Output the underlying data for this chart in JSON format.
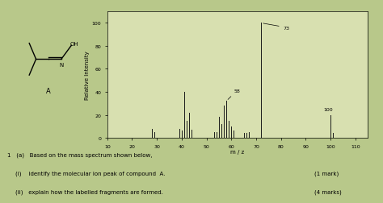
{
  "xlabel": "m / z",
  "ylabel": "Relative Intensity",
  "xlim": [
    10,
    115
  ],
  "ylim": [
    0,
    110
  ],
  "xticks": [
    10,
    20,
    30,
    40,
    50,
    60,
    70,
    80,
    90,
    100,
    110
  ],
  "yticks": [
    0,
    20,
    40,
    60,
    80,
    100
  ],
  "bg_color": "#b8c88a",
  "plot_bg_color": "#d8e0b0",
  "bar_color": "#1a1a1a",
  "peaks": [
    {
      "mz": 28,
      "intensity": 8
    },
    {
      "mz": 29,
      "intensity": 5
    },
    {
      "mz": 39,
      "intensity": 8
    },
    {
      "mz": 40,
      "intensity": 6
    },
    {
      "mz": 41,
      "intensity": 40
    },
    {
      "mz": 42,
      "intensity": 15
    },
    {
      "mz": 43,
      "intensity": 22
    },
    {
      "mz": 44,
      "intensity": 7
    },
    {
      "mz": 53,
      "intensity": 5
    },
    {
      "mz": 54,
      "intensity": 5
    },
    {
      "mz": 55,
      "intensity": 18
    },
    {
      "mz": 56,
      "intensity": 12
    },
    {
      "mz": 57,
      "intensity": 28
    },
    {
      "mz": 58,
      "intensity": 32
    },
    {
      "mz": 59,
      "intensity": 15
    },
    {
      "mz": 60,
      "intensity": 10
    },
    {
      "mz": 61,
      "intensity": 6
    },
    {
      "mz": 65,
      "intensity": 4
    },
    {
      "mz": 66,
      "intensity": 4
    },
    {
      "mz": 67,
      "intensity": 5
    },
    {
      "mz": 72,
      "intensity": 100
    },
    {
      "mz": 100,
      "intensity": 20
    },
    {
      "mz": 101,
      "intensity": 4
    }
  ],
  "label_73_mz": 72,
  "label_73_intensity": 100,
  "label_58_mz": 58,
  "label_58_intensity": 32,
  "label_100_mz": 100,
  "label_100_intensity": 20,
  "title_question": "1   (a)   Based on the mass spectrum shown below,",
  "question_i": "(i)    identify the molecular ion peak of compound  A.",
  "question_ii": "(ii)   explain how the labelled fragments are formed.",
  "mark_i": "(1 mark)",
  "mark_ii": "(4 marks)"
}
